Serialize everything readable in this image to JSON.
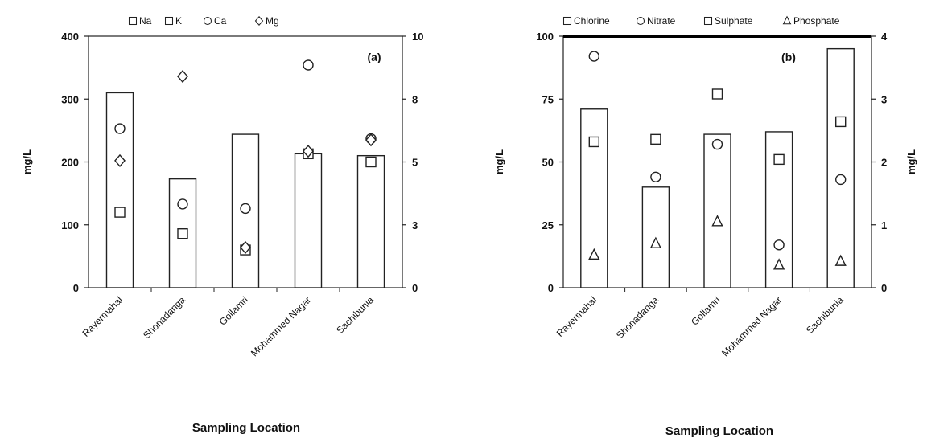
{
  "chart_data": [
    {
      "type": "bar",
      "panel_label": "(a)",
      "categories": [
        "Rayermahal",
        "Shonadanga",
        "Gollamri",
        "Mohammed Nagar",
        "Sachibunia"
      ],
      "xlabel": "Sampling Location",
      "ylabel": "mg/L",
      "y2label": "",
      "ylim": [
        0,
        400
      ],
      "y2lim": [
        0,
        10
      ],
      "yticks": [
        "0",
        "100",
        "200",
        "300",
        "400"
      ],
      "y2ticks": [
        "0",
        "3",
        "5",
        "8",
        "10"
      ],
      "legend_position": "top",
      "series": [
        {
          "name": "Na",
          "marker": "bar",
          "axis": "left",
          "values": [
            310,
            173,
            244,
            213,
            210
          ]
        },
        {
          "name": "K",
          "marker": "square",
          "axis": "left",
          "values": [
            120,
            86,
            60,
            213,
            200
          ]
        },
        {
          "name": "Ca",
          "marker": "circle",
          "axis": "left",
          "values": [
            253,
            133,
            126,
            354,
            237
          ]
        },
        {
          "name": "Mg",
          "marker": "diamond",
          "axis": "left",
          "values": [
            202,
            null,
            64,
            217,
            235
          ]
        }
      ],
      "extra_points": [
        {
          "series": "Mg",
          "category": "Shonadanga",
          "axis": "right",
          "value": 8.4
        }
      ]
    },
    {
      "type": "bar",
      "panel_label": "(b)",
      "categories": [
        "Rayermahal",
        "Shonadanga",
        "Gollamri",
        "Mohammed Nagar",
        "Sachibunia"
      ],
      "xlabel": "Sampling Location",
      "ylabel": "mg/L",
      "y2label": "mg/L",
      "ylim": [
        0,
        100
      ],
      "y2lim": [
        0,
        4
      ],
      "yticks": [
        "0",
        "25",
        "50",
        "75",
        "100"
      ],
      "y2ticks": [
        "0",
        "1",
        "2",
        "3",
        "4"
      ],
      "legend_position": "top",
      "series": [
        {
          "name": "Chlorine",
          "marker": "bar",
          "axis": "left",
          "values": [
            71,
            40,
            61,
            62,
            95
          ]
        },
        {
          "name": "Nitrate",
          "marker": "circle",
          "axis": "left",
          "values": [
            92,
            44,
            57,
            17,
            43
          ]
        },
        {
          "name": "Sulphate",
          "marker": "square",
          "axis": "left",
          "values": [
            58,
            59,
            77,
            51,
            66
          ]
        },
        {
          "name": "Phosphate",
          "marker": "triangle",
          "axis": "right",
          "values": [
            0.52,
            0.7,
            1.05,
            0.36,
            0.42
          ]
        }
      ]
    }
  ]
}
